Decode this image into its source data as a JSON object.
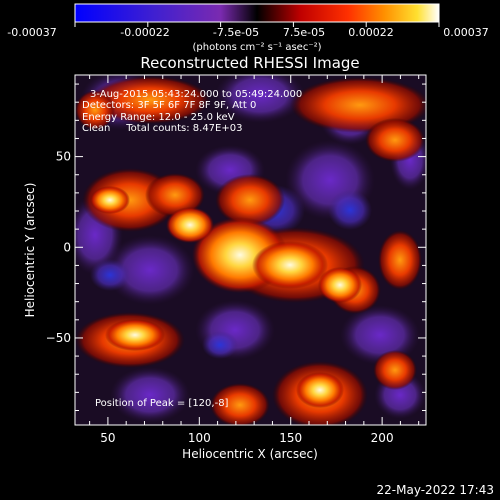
{
  "colorbar": {
    "ticks": [
      "-0.00037",
      "-0.00022",
      "-7.5e-05",
      "7.5e-05",
      "0.00022",
      "0.00037"
    ],
    "unit_label": "(photons cm⁻² s⁻¹ asec⁻²)"
  },
  "chart_data": {
    "type": "heatmap",
    "title": "Reconstructed RHESSI Image",
    "xlabel": "Heliocentric X (arcsec)",
    "ylabel": "Heliocentric Y (arcsec)",
    "xlim": [
      32,
      224
    ],
    "ylim": [
      -98,
      95
    ],
    "x_ticks": [
      "50",
      "100",
      "150",
      "200"
    ],
    "y_ticks": [
      "50",
      "0",
      "−50"
    ],
    "colormap": "blue-purple-black-red-orange-yellow-white",
    "annotations": [
      "3-Aug-2015 05:43:24.000 to 05:49:24.000",
      "Detectors: 3F 5F 6F 7F 8F 9F, Att 0",
      "Energy Range: 12.0 - 25.0 keV",
      "Clean     Total counts: 8.47E+03"
    ],
    "peak_label": "Position of Peak = [120,-8]",
    "peak": [
      120,
      -8
    ]
  },
  "footer": {
    "timestamp": "22-May-2022 17:43"
  },
  "colors": {
    "background": "#000000",
    "text": "#ffffff"
  }
}
